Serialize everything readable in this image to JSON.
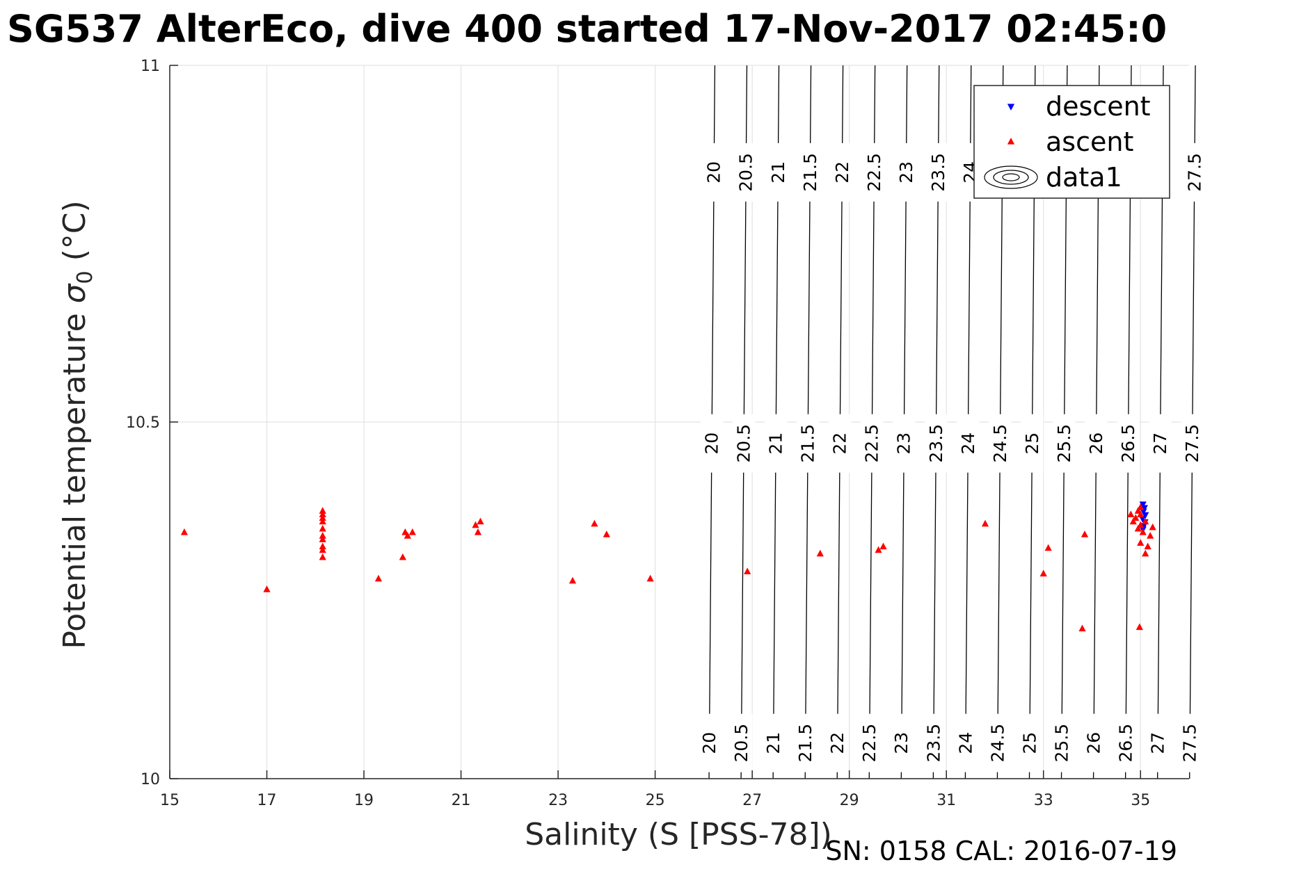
{
  "chart_data": {
    "type": "scatter",
    "title": "SG537 AlterEco, dive 400 started 17-Nov-2017 02:45:0",
    "xlabel": "Salinity (S [PSS-78])",
    "ylabel_main": "Potential temperature ",
    "ylabel_sigma": "σ",
    "ylabel_sub": "0",
    "ylabel_unit": " (°C)",
    "xlim": [
      15,
      36
    ],
    "ylim": [
      10,
      11
    ],
    "xticks": [
      15,
      17,
      19,
      21,
      23,
      25,
      27,
      29,
      31,
      33,
      35
    ],
    "yticks": [
      10,
      10.5,
      11
    ],
    "xtick_labels": [
      "15",
      "17",
      "19",
      "21",
      "23",
      "25",
      "27",
      "29",
      "31",
      "33",
      "35"
    ],
    "ytick_labels": [
      "10",
      "10.5",
      "11"
    ],
    "grid": true,
    "legend_position": "top-right",
    "footer": "SN: 0158  CAL: 2016-07-19",
    "series": [
      {
        "name": "descent",
        "marker": "triangle-down",
        "color": "#0000ff",
        "points": [
          [
            35.05,
            10.385
          ],
          [
            35.08,
            10.38
          ],
          [
            35.06,
            10.375
          ],
          [
            35.1,
            10.37
          ],
          [
            35.04,
            10.365
          ],
          [
            35.09,
            10.36
          ],
          [
            35.07,
            10.355
          ],
          [
            35.05,
            10.35
          ]
        ]
      },
      {
        "name": "ascent",
        "marker": "triangle-up",
        "color": "#ff0000",
        "points": [
          [
            15.3,
            10.345
          ],
          [
            17.0,
            10.265
          ],
          [
            18.15,
            10.375
          ],
          [
            18.15,
            10.37
          ],
          [
            18.15,
            10.365
          ],
          [
            18.15,
            10.36
          ],
          [
            18.15,
            10.35
          ],
          [
            18.15,
            10.34
          ],
          [
            18.15,
            10.335
          ],
          [
            18.15,
            10.325
          ],
          [
            18.15,
            10.32
          ],
          [
            18.15,
            10.31
          ],
          [
            19.3,
            10.28
          ],
          [
            19.8,
            10.31
          ],
          [
            19.85,
            10.345
          ],
          [
            19.9,
            10.34
          ],
          [
            20.0,
            10.345
          ],
          [
            21.3,
            10.355
          ],
          [
            21.35,
            10.345
          ],
          [
            21.4,
            10.36
          ],
          [
            23.3,
            10.277
          ],
          [
            23.75,
            10.357
          ],
          [
            24.0,
            10.342
          ],
          [
            24.9,
            10.28
          ],
          [
            26.9,
            10.29
          ],
          [
            28.4,
            10.315
          ],
          [
            29.6,
            10.32
          ],
          [
            29.7,
            10.325
          ],
          [
            31.8,
            10.357
          ],
          [
            33.0,
            10.287
          ],
          [
            33.1,
            10.323
          ],
          [
            33.8,
            10.21
          ],
          [
            33.85,
            10.342
          ],
          [
            34.8,
            10.37
          ],
          [
            34.85,
            10.36
          ],
          [
            34.9,
            10.365
          ],
          [
            34.95,
            10.375
          ],
          [
            34.95,
            10.35
          ],
          [
            35.0,
            10.38
          ],
          [
            35.0,
            10.37
          ],
          [
            35.0,
            10.355
          ],
          [
            35.05,
            10.345
          ],
          [
            35.1,
            10.36
          ],
          [
            35.15,
            10.325
          ],
          [
            35.2,
            10.34
          ],
          [
            35.25,
            10.352
          ],
          [
            35.0,
            10.33
          ],
          [
            35.1,
            10.315
          ],
          [
            34.98,
            10.212
          ]
        ]
      }
    ],
    "contours": {
      "name": "data1",
      "levels": [
        "20",
        "20.5",
        "21",
        "21.5",
        "22",
        "22.5",
        "23",
        "23.5",
        "24",
        "24.5",
        "25",
        "25.5",
        "26",
        "26.5",
        "27",
        "27.5"
      ],
      "salinity_at_10": [
        26.11,
        26.77,
        27.43,
        28.09,
        28.75,
        29.41,
        30.07,
        30.73,
        31.39,
        32.05,
        32.71,
        33.37,
        34.03,
        34.69,
        35.35,
        36.01
      ],
      "salinity_at_11": [
        26.23,
        26.89,
        27.55,
        28.21,
        28.87,
        29.53,
        30.19,
        30.85,
        31.51,
        32.17,
        32.83,
        33.49,
        34.15,
        34.81,
        35.47,
        36.13
      ],
      "label_rows": [
        {
          "t": 10.05,
          "levels": [
            "20",
            "20.5",
            "21",
            "21.5",
            "22",
            "22.5",
            "23",
            "23.5",
            "24",
            "24.5",
            "25",
            "25.5",
            "26",
            "26.5",
            "27",
            "27.5"
          ]
        },
        {
          "t": 10.47,
          "levels": [
            "20",
            "20.5",
            "21",
            "21.5",
            "22",
            "22.5",
            "23",
            "23.5",
            "24",
            "24.5",
            "25",
            "25.5",
            "26",
            "26.5",
            "27",
            "27.5"
          ]
        },
        {
          "t": 10.85,
          "levels": [
            "20",
            "20.5",
            "21",
            "21.5",
            "22",
            "22.5",
            "23",
            "23.5",
            "24",
            "27.5"
          ]
        }
      ]
    }
  }
}
